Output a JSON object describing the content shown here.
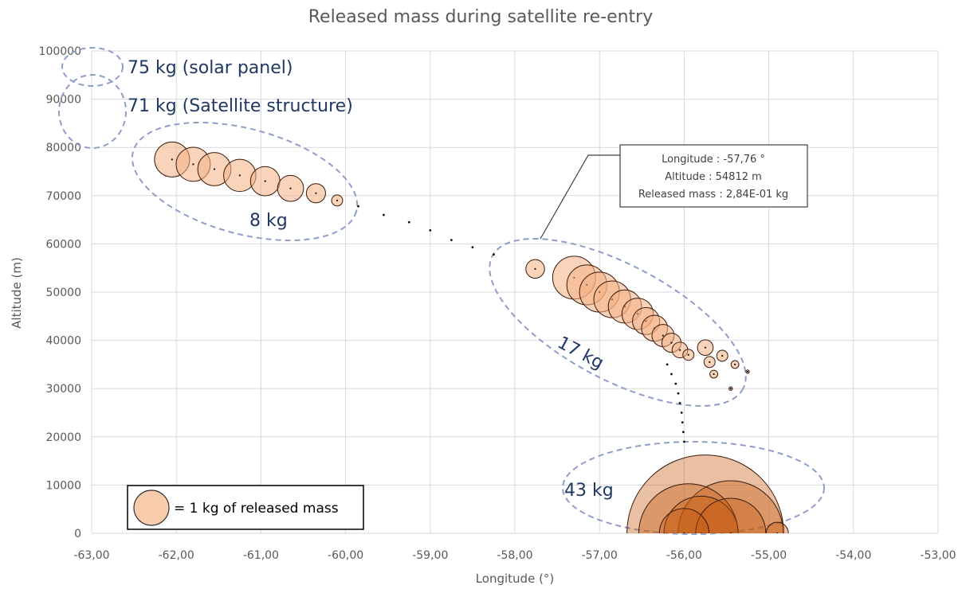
{
  "chart_data": {
    "type": "scatter",
    "subtype": "bubble",
    "title": "Released mass during satellite re-entry",
    "xlabel": "Longitude (°)",
    "ylabel": "Altitude (m)",
    "xlim": [
      -63,
      -53
    ],
    "ylim": [
      0,
      100000
    ],
    "x_ticks": [
      "-63,00",
      "-62,00",
      "-61,00",
      "-60,00",
      "-59,00",
      "-58,00",
      "-57,00",
      "-56,00",
      "-55,00",
      "-54,00",
      "-53,00"
    ],
    "y_ticks": [
      "0",
      "10000",
      "20000",
      "30000",
      "40000",
      "50000",
      "60000",
      "70000",
      "80000",
      "90000",
      "100000"
    ],
    "grid": true,
    "colors": {
      "bubble_fill": "#f4b183",
      "bubble_dark": "#c55a11",
      "bubble_stroke": "#3a1a0a",
      "cluster_outline": "#8f9dc9",
      "label": "#1f3864",
      "grid": "#d9d9d9"
    },
    "series": [
      {
        "points": [
          {
            "x": -62.05,
            "y": 77500,
            "mass": 1.0
          },
          {
            "x": -61.8,
            "y": 76500,
            "mass": 0.95
          },
          {
            "x": -61.55,
            "y": 75500,
            "mass": 0.9
          },
          {
            "x": -61.25,
            "y": 74200,
            "mass": 0.85
          },
          {
            "x": -60.95,
            "y": 73000,
            "mass": 0.7
          },
          {
            "x": -60.65,
            "y": 71500,
            "mass": 0.55
          },
          {
            "x": -60.35,
            "y": 70500,
            "mass": 0.3
          },
          {
            "x": -60.1,
            "y": 69000,
            "mass": 0.1
          },
          {
            "x": -59.85,
            "y": 67800,
            "mass": 0.001
          },
          {
            "x": -59.55,
            "y": 66000,
            "mass": 0.001
          },
          {
            "x": -59.25,
            "y": 64500,
            "mass": 0.001
          },
          {
            "x": -59.0,
            "y": 62800,
            "mass": 0.001
          },
          {
            "x": -58.75,
            "y": 60800,
            "mass": 0.001
          },
          {
            "x": -58.5,
            "y": 59300,
            "mass": 0.001
          },
          {
            "x": -58.25,
            "y": 57800,
            "mass": 0.001
          },
          {
            "x": -57.76,
            "y": 54812,
            "mass": 0.284
          },
          {
            "x": -57.3,
            "y": 53000,
            "mass": 1.5
          },
          {
            "x": -57.15,
            "y": 51500,
            "mass": 1.3
          },
          {
            "x": -57.0,
            "y": 50000,
            "mass": 1.3
          },
          {
            "x": -56.85,
            "y": 48500,
            "mass": 1.1
          },
          {
            "x": -56.7,
            "y": 47000,
            "mass": 0.9
          },
          {
            "x": -56.55,
            "y": 45500,
            "mass": 0.8
          },
          {
            "x": -56.45,
            "y": 44000,
            "mass": 0.6
          },
          {
            "x": -56.35,
            "y": 42500,
            "mass": 0.55
          },
          {
            "x": -56.25,
            "y": 41000,
            "mass": 0.4
          },
          {
            "x": -56.15,
            "y": 39500,
            "mass": 0.3
          },
          {
            "x": -56.05,
            "y": 38000,
            "mass": 0.2
          },
          {
            "x": -55.95,
            "y": 37000,
            "mass": 0.1
          },
          {
            "x": -55.75,
            "y": 38500,
            "mass": 0.2
          },
          {
            "x": -55.55,
            "y": 36800,
            "mass": 0.1
          },
          {
            "x": -55.4,
            "y": 35000,
            "mass": 0.05
          },
          {
            "x": -55.25,
            "y": 33500,
            "mass": 0.01
          },
          {
            "x": -55.7,
            "y": 35500,
            "mass": 0.1
          },
          {
            "x": -55.65,
            "y": 33000,
            "mass": 0.05
          },
          {
            "x": -55.45,
            "y": 30000,
            "mass": 0.01
          },
          {
            "x": -56.2,
            "y": 35000,
            "mass": 0.001
          },
          {
            "x": -56.15,
            "y": 33000,
            "mass": 0.001
          },
          {
            "x": -56.1,
            "y": 31000,
            "mass": 0.001
          },
          {
            "x": -56.07,
            "y": 29000,
            "mass": 0.001
          },
          {
            "x": -56.05,
            "y": 27000,
            "mass": 0.001
          },
          {
            "x": -56.03,
            "y": 25000,
            "mass": 0.001
          },
          {
            "x": -56.02,
            "y": 23000,
            "mass": 0.001
          },
          {
            "x": -56.01,
            "y": 21000,
            "mass": 0.001
          },
          {
            "x": -56.0,
            "y": 19000,
            "mass": 0.001
          },
          {
            "x": -55.75,
            "y": 0,
            "mass": 20.0
          },
          {
            "x": -55.95,
            "y": 0,
            "mass": 8.0
          },
          {
            "x": -55.45,
            "y": 0,
            "mass": 9.0
          },
          {
            "x": -55.8,
            "y": 0,
            "mass": 4.5
          },
          {
            "x": -55.45,
            "y": 0,
            "mass": 4.0
          },
          {
            "x": -56.0,
            "y": 0,
            "mass": 2.0
          },
          {
            "x": -54.9,
            "y": 0,
            "mass": 0.4
          }
        ]
      }
    ],
    "clusters": [
      {
        "label": "75 kg (solar panel)"
      },
      {
        "label": "71 kg (Satellite structure)"
      },
      {
        "label": "8 kg"
      },
      {
        "label": "17 kg"
      },
      {
        "label": "43 kg"
      }
    ],
    "callout": {
      "line1": "Longitude : -57,76 °",
      "line2": "Altitude : 54812 m",
      "line3": "Released mass : 2,84E-01 kg"
    },
    "legend": {
      "label": "= 1 kg of released mass",
      "placement": "bottom-left"
    }
  }
}
